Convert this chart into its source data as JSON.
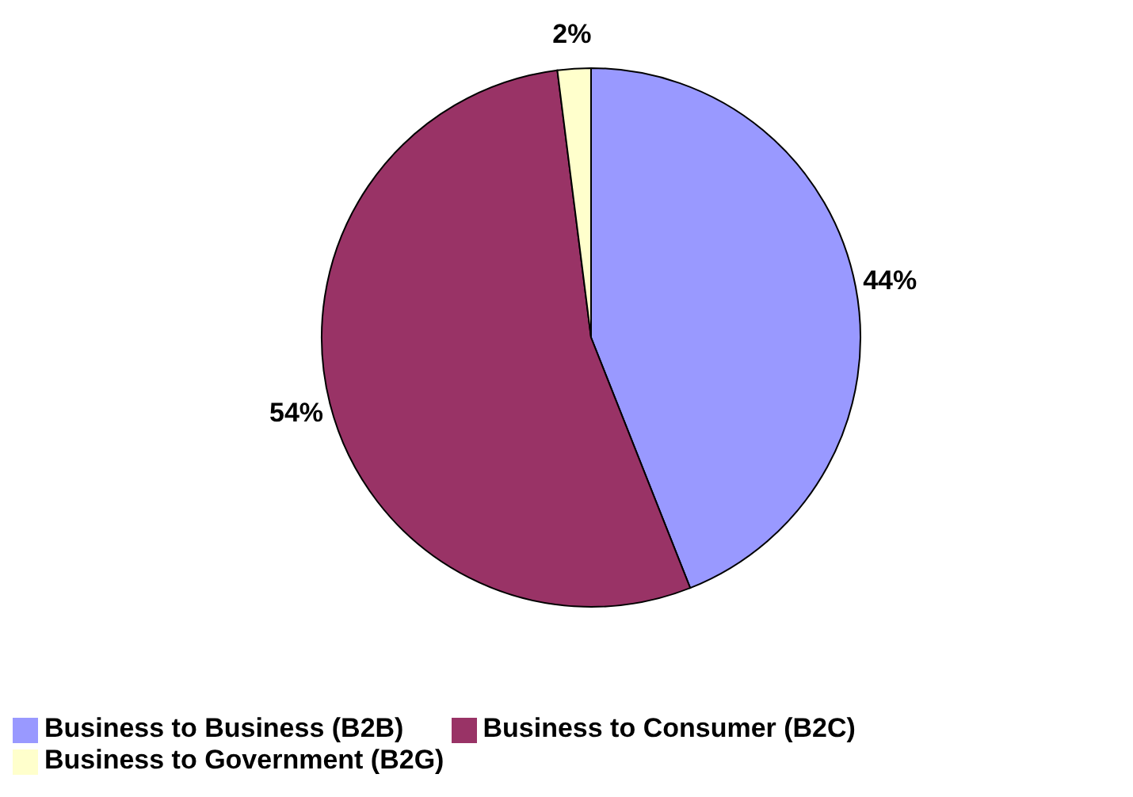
{
  "chart_data": {
    "type": "pie",
    "categories": [
      "Business to Business (B2B)",
      "Business to Consumer (B2C)",
      "Business to Government (B2G)"
    ],
    "values": [
      44,
      54,
      2
    ],
    "colors": [
      "#9999ff",
      "#993366",
      "#ffffcc"
    ],
    "value_labels": [
      "44%",
      "54%",
      "2%"
    ],
    "legend": "bottom"
  }
}
